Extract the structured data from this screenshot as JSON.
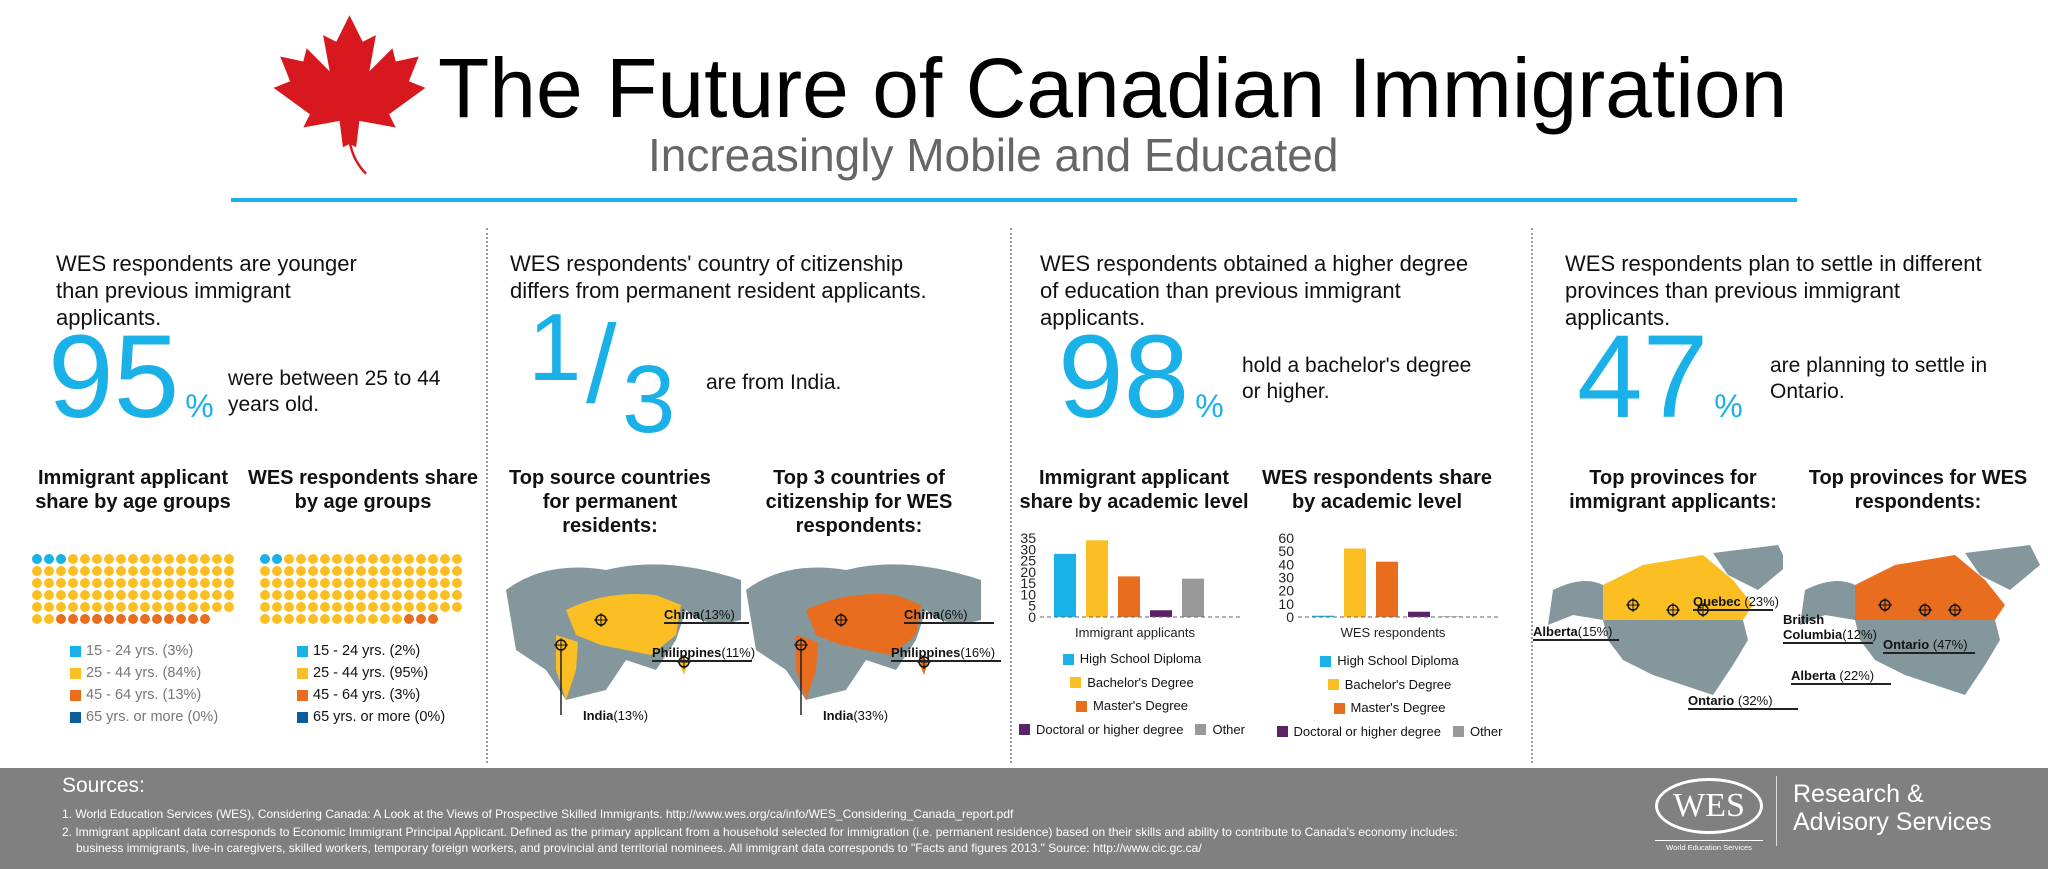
{
  "header": {
    "title": "The Future of Canadian Immigration",
    "subtitle": "Increasingly Mobile and Educated",
    "logo_icon": "maple-leaf-icon",
    "accent": "#1ab0e8"
  },
  "colors": {
    "blue": "#1ab0e8",
    "yellow": "#fbbf24",
    "orange": "#e86d1f",
    "navy": "#0b5c9a",
    "purple": "#5b2268",
    "gray": "#999999",
    "map_gray": "#84979c"
  },
  "age": {
    "heading": "WES respondents are younger than previous immigrant applicants.",
    "big": "95",
    "pct": "%",
    "stat": "were between 25 to 44 years old.",
    "left_title": "Immigrant applicant share by age groups",
    "right_title": "WES respondents share by age groups",
    "left": [
      {
        "label": "15 - 24 yrs. (3%)",
        "value": 3
      },
      {
        "label": "25 - 44 yrs. (84%)",
        "value": 84
      },
      {
        "label": "45 - 64 yrs. (13%)",
        "value": 13
      },
      {
        "label": "65 yrs. or more (0%)",
        "value": 0
      }
    ],
    "right": [
      {
        "label": "15 - 24 yrs. (2%)",
        "value": 2
      },
      {
        "label": "25 - 44 yrs. (95%)",
        "value": 95
      },
      {
        "label": "45 - 64 yrs. (3%)",
        "value": 3
      },
      {
        "label": "65 yrs. or more (0%)",
        "value": 0
      }
    ]
  },
  "country": {
    "heading": "WES respondents' country of citizenship differs from permanent resident applicants.",
    "big_num": "1",
    "big_den": "3",
    "stat": "are from India.",
    "left_title": "Top source countries for permanent residents:",
    "right_title": "Top 3 countries of citizenship for WES respondents:",
    "left": [
      {
        "name": "China",
        "pct": "(13%)"
      },
      {
        "name": "Philippines",
        "pct": "(11%)"
      },
      {
        "name": "India",
        "pct": "(13%)"
      }
    ],
    "right": [
      {
        "name": "China",
        "pct": "(6%)"
      },
      {
        "name": "Philippines",
        "pct": "(16%)"
      },
      {
        "name": "India",
        "pct": "(33%)"
      }
    ]
  },
  "education": {
    "heading": "WES respondents obtained a higher degree of education than previous immigrant applicants.",
    "big": "98",
    "pct": "%",
    "stat": "hold a bachelor's degree or higher.",
    "left_title": "Immigrant applicant share by academic level",
    "right_title": "WES respondents share by academic level",
    "legend": [
      "High School Diploma",
      "Bachelor's Degree",
      "Master's Degree",
      "Doctoral or higher degree",
      "Other"
    ]
  },
  "chart_data": [
    {
      "type": "bar",
      "title": "Immigrant applicant share by academic level",
      "xlabel": "Immigrant applicants",
      "categories": [
        "High School Diploma",
        "Bachelor's Degree",
        "Master's Degree",
        "Doctoral or higher degree",
        "Other"
      ],
      "values": [
        28,
        34,
        18,
        3,
        17
      ],
      "ylim": [
        0,
        35
      ],
      "yticks": [
        "35",
        "30",
        "25",
        "20",
        "15",
        "10",
        "5",
        "0"
      ]
    },
    {
      "type": "bar",
      "title": "WES respondents share by academic level",
      "xlabel": "WES respondents",
      "categories": [
        "High School Diploma",
        "Bachelor's Degree",
        "Master's Degree",
        "Doctoral or higher degree",
        "Other"
      ],
      "values": [
        1,
        52,
        42,
        4,
        0.5
      ],
      "ylim": [
        0,
        60
      ],
      "yticks": [
        "60",
        "50",
        "40",
        "30",
        "20",
        "10",
        "0"
      ]
    }
  ],
  "province": {
    "heading": "WES respondents plan to settle in different provinces than previous immigrant applicants.",
    "big": "47",
    "pct": "%",
    "stat": "are planning to settle in Ontario.",
    "left_title": "Top provinces for immigrant applicants:",
    "right_title": "Top provinces for WES respondents:",
    "left": [
      {
        "name": "Quebec",
        "pct": "(23%)"
      },
      {
        "name": "Alberta",
        "pct": "(15%)"
      },
      {
        "name": "Ontario",
        "pct": "(32%)"
      }
    ],
    "right": [
      {
        "name": "British Columbia",
        "pct": "(12%)"
      },
      {
        "name": "Alberta",
        "pct": "(22%)"
      },
      {
        "name": "Ontario",
        "pct": "(47%)"
      }
    ]
  },
  "footer": {
    "sources_label": "Sources:",
    "source1": "1. World Education Services (WES), Considering Canada: A Look at the Views of Prospective Skilled Immigrants. http://www.wes.org/ca/info/WES_Considering_Canada_report.pdf",
    "source2": "2. Immigrant applicant data corresponds to Economic Immigrant Principal Applicant. Defined as the primary applicant from a household selected for immigration (i.e. permanent residence) based on their skills and ability to contribute to Canada's economy includes:",
    "source2b": "business immigrants, live-in caregivers, skilled workers, temporary foreign workers, and provincial and territorial nominees. All immigrant data corresponds to \"Facts and figures 2013.\" Source: http://www.cic.gc.ca/",
    "logo_text": "WES",
    "logo_caption": "World Education Services",
    "brand_line1": "Research &",
    "brand_line2": "Advisory Services"
  }
}
